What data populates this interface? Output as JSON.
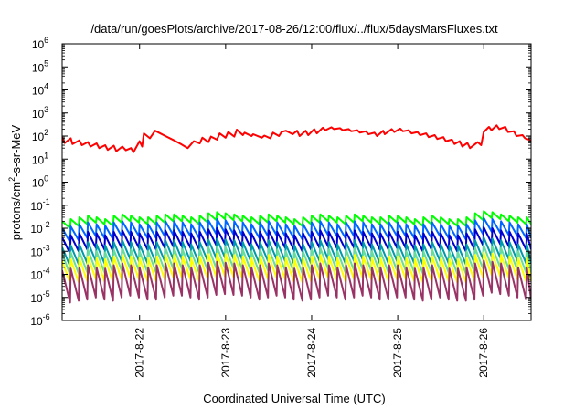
{
  "chart_data": {
    "type": "line",
    "title": "/data/run/goesPlots/archive/2017-08-26/12:00/flux/../flux/5daysMarsFluxes.txt",
    "xlabel": "Coordinated Universal Time (UTC)",
    "ylabel": {
      "base": "protons/cm",
      "sup": "2",
      "rest": "-s-sr-MeV"
    },
    "yscale": "log",
    "ylim_exp": [
      -6,
      6
    ],
    "ytick_base": "10",
    "yticks_exp": [
      "-6",
      "-5",
      "-4",
      "-3",
      "-2",
      "-1",
      "0",
      "1",
      "2",
      "3",
      "4",
      "5",
      "6"
    ],
    "xlim_days": [
      21.1,
      26.55
    ],
    "xticks": [
      {
        "day": 22,
        "label": "2017-8-22"
      },
      {
        "day": 23,
        "label": "2017-8-23"
      },
      {
        "day": 24,
        "label": "2017-8-24"
      },
      {
        "day": 25,
        "label": "2017-8-25"
      },
      {
        "day": 26,
        "label": "2017-8-26"
      }
    ],
    "grid": false,
    "series": [
      {
        "color": "#ff0000",
        "style": "decay-with-jumps",
        "x_days": [
          21.1,
          21.13,
          21.2,
          21.22,
          21.3,
          21.33,
          21.4,
          21.43,
          21.5,
          21.53,
          21.6,
          21.63,
          21.7,
          21.73,
          21.8,
          21.84,
          21.9,
          21.93,
          22.0,
          22.03,
          22.05,
          22.12,
          22.18,
          22.3,
          22.4,
          22.48,
          22.56,
          22.63,
          22.7,
          22.73,
          22.8,
          22.83,
          22.9,
          22.93,
          23.0,
          23.03,
          23.1,
          23.13,
          23.2,
          23.22,
          23.3,
          23.32,
          23.42,
          23.45,
          23.52,
          23.55,
          23.62,
          23.65,
          23.7,
          23.78,
          23.83,
          23.86,
          23.93,
          23.96,
          24.03,
          24.06,
          24.13,
          24.16,
          24.23,
          24.26,
          24.33,
          24.36,
          24.43,
          24.46,
          24.53,
          24.56,
          24.63,
          24.66,
          24.73,
          24.76,
          24.83,
          24.85,
          24.93,
          24.96,
          25.03,
          25.06,
          25.13,
          25.16,
          25.23,
          25.26,
          25.33,
          25.36,
          25.43,
          25.46,
          25.53,
          25.56,
          25.63,
          25.66,
          25.72,
          25.75,
          25.81,
          25.84,
          25.9,
          25.93,
          25.97,
          26.0,
          26.06,
          26.09,
          26.15,
          26.18,
          26.25,
          26.28,
          26.35,
          26.38,
          26.45,
          26.48,
          26.55
        ],
        "y": [
          90,
          50,
          80,
          45,
          65,
          40,
          55,
          35,
          48,
          30,
          40,
          25,
          38,
          22,
          35,
          24,
          30,
          20,
          60,
          35,
          130,
          80,
          170,
          100,
          65,
          45,
          30,
          60,
          48,
          85,
          55,
          95,
          70,
          130,
          85,
          150,
          95,
          190,
          110,
          140,
          100,
          120,
          85,
          105,
          80,
          140,
          100,
          150,
          170,
          120,
          170,
          100,
          170,
          110,
          200,
          130,
          230,
          180,
          240,
          200,
          220,
          180,
          200,
          160,
          180,
          140,
          160,
          120,
          140,
          100,
          170,
          120,
          200,
          150,
          210,
          160,
          180,
          130,
          150,
          110,
          130,
          90,
          110,
          75,
          90,
          60,
          70,
          45,
          60,
          35,
          50,
          30,
          45,
          55,
          40,
          150,
          250,
          180,
          290,
          200,
          250,
          150,
          160,
          100,
          110,
          80,
          65
        ]
      },
      {
        "color": "#00ff00",
        "style": "sawtooth",
        "x_start": 21.1,
        "x_end": 26.55,
        "period": 0.1,
        "peak": [
          0.02,
          0.025,
          0.03,
          0.035,
          0.03,
          0.025,
          0.035,
          0.04,
          0.035,
          0.03,
          0.03,
          0.035,
          0.04,
          0.04,
          0.035,
          0.03,
          0.035,
          0.045,
          0.05,
          0.045,
          0.04,
          0.035,
          0.03,
          0.035,
          0.04,
          0.035,
          0.03,
          0.025,
          0.03,
          0.035,
          0.04,
          0.035,
          0.03,
          0.035,
          0.04,
          0.035,
          0.03,
          0.03,
          0.035,
          0.035,
          0.03,
          0.025,
          0.03,
          0.035,
          0.03,
          0.025,
          0.025,
          0.03,
          0.045,
          0.055,
          0.05,
          0.04,
          0.035,
          0.03,
          0.03
        ],
        "trough_ratio": 0.5
      },
      {
        "color": "#0066ff",
        "style": "sawtooth",
        "x_start": 21.1,
        "x_end": 26.55,
        "period": 0.1,
        "peak": [
          0.01,
          0.012,
          0.015,
          0.018,
          0.015,
          0.013,
          0.018,
          0.02,
          0.018,
          0.015,
          0.015,
          0.018,
          0.02,
          0.02,
          0.018,
          0.015,
          0.018,
          0.022,
          0.025,
          0.022,
          0.02,
          0.018,
          0.015,
          0.018,
          0.02,
          0.018,
          0.015,
          0.013,
          0.015,
          0.018,
          0.02,
          0.018,
          0.015,
          0.018,
          0.02,
          0.018,
          0.015,
          0.015,
          0.018,
          0.018,
          0.015,
          0.013,
          0.015,
          0.018,
          0.015,
          0.013,
          0.013,
          0.015,
          0.022,
          0.028,
          0.025,
          0.02,
          0.018,
          0.015,
          0.015
        ],
        "trough_ratio": 0.25
      },
      {
        "color": "#0000cc",
        "style": "sawtooth",
        "x_start": 21.1,
        "x_end": 26.55,
        "period": 0.1,
        "peak": [
          0.004,
          0.005,
          0.006,
          0.007,
          0.006,
          0.005,
          0.007,
          0.008,
          0.007,
          0.006,
          0.006,
          0.007,
          0.008,
          0.008,
          0.007,
          0.006,
          0.007,
          0.009,
          0.01,
          0.009,
          0.008,
          0.007,
          0.006,
          0.007,
          0.008,
          0.007,
          0.006,
          0.005,
          0.006,
          0.007,
          0.008,
          0.007,
          0.006,
          0.007,
          0.008,
          0.007,
          0.006,
          0.006,
          0.007,
          0.007,
          0.006,
          0.005,
          0.006,
          0.007,
          0.006,
          0.005,
          0.005,
          0.006,
          0.009,
          0.011,
          0.01,
          0.008,
          0.007,
          0.006,
          0.006
        ],
        "trough_ratio": 0.2
      },
      {
        "color": "#0099aa",
        "style": "sawtooth",
        "x_start": 21.1,
        "x_end": 26.55,
        "period": 0.1,
        "peak": [
          0.0015,
          0.0018,
          0.002,
          0.0025,
          0.002,
          0.0018,
          0.0025,
          0.003,
          0.0025,
          0.002,
          0.002,
          0.0025,
          0.003,
          0.003,
          0.0025,
          0.002,
          0.0025,
          0.0032,
          0.0035,
          0.0032,
          0.003,
          0.0025,
          0.002,
          0.0025,
          0.003,
          0.0025,
          0.002,
          0.0018,
          0.002,
          0.0025,
          0.003,
          0.0025,
          0.002,
          0.0025,
          0.003,
          0.0025,
          0.002,
          0.002,
          0.0025,
          0.0025,
          0.002,
          0.0018,
          0.002,
          0.0025,
          0.002,
          0.0018,
          0.0018,
          0.002,
          0.003,
          0.004,
          0.0035,
          0.003,
          0.0025,
          0.002,
          0.002
        ],
        "trough_ratio": 0.15
      },
      {
        "color": "#66dd99",
        "style": "sawtooth",
        "x_start": 21.1,
        "x_end": 26.55,
        "period": 0.1,
        "peak": [
          0.0008,
          0.0009,
          0.001,
          0.0012,
          0.001,
          0.0009,
          0.0012,
          0.0014,
          0.0012,
          0.001,
          0.001,
          0.0012,
          0.0014,
          0.0014,
          0.0012,
          0.001,
          0.0012,
          0.0015,
          0.0016,
          0.0015,
          0.0014,
          0.0012,
          0.001,
          0.0012,
          0.0014,
          0.0012,
          0.001,
          0.0009,
          0.001,
          0.0012,
          0.0014,
          0.0012,
          0.001,
          0.0012,
          0.0014,
          0.0012,
          0.001,
          0.001,
          0.0012,
          0.0012,
          0.001,
          0.0009,
          0.001,
          0.0012,
          0.001,
          0.0009,
          0.0009,
          0.001,
          0.0014,
          0.0018,
          0.0016,
          0.0014,
          0.0012,
          0.001,
          0.001
        ],
        "trough_ratio": 0.12
      },
      {
        "color": "#ffff00",
        "style": "sawtooth",
        "x_start": 21.1,
        "x_end": 26.55,
        "period": 0.1,
        "peak": [
          0.0004,
          0.00045,
          0.0005,
          0.0006,
          0.0005,
          0.00045,
          0.0006,
          0.0007,
          0.0006,
          0.0005,
          0.0005,
          0.0006,
          0.0007,
          0.0007,
          0.0006,
          0.0005,
          0.0006,
          0.00075,
          0.0008,
          0.00075,
          0.0007,
          0.0006,
          0.0005,
          0.0006,
          0.0007,
          0.0006,
          0.0005,
          0.00045,
          0.0005,
          0.0006,
          0.0007,
          0.0006,
          0.0005,
          0.0006,
          0.0007,
          0.0006,
          0.0005,
          0.0005,
          0.0006,
          0.0006,
          0.0005,
          0.00045,
          0.0005,
          0.0006,
          0.0005,
          0.00045,
          0.00045,
          0.0005,
          0.0007,
          0.0009,
          0.0008,
          0.0007,
          0.0006,
          0.0005,
          0.0005
        ],
        "trough_ratio": 0.1
      },
      {
        "color": "#993366",
        "style": "sawtooth",
        "x_start": 21.1,
        "x_end": 26.55,
        "period": 0.1,
        "peak": [
          0.00015,
          0.00018,
          0.0002,
          0.00025,
          0.0002,
          0.00018,
          0.00025,
          0.0003,
          0.00025,
          0.0002,
          0.0002,
          0.00025,
          0.0003,
          0.0003,
          0.00025,
          0.0002,
          0.00025,
          0.00032,
          0.00035,
          0.00032,
          0.0003,
          0.00025,
          0.0002,
          0.00025,
          0.0003,
          0.00025,
          0.0002,
          0.00018,
          0.0002,
          0.00025,
          0.0003,
          0.00025,
          0.0002,
          0.00025,
          0.0003,
          0.00025,
          0.0002,
          0.0002,
          0.00025,
          0.00025,
          0.0002,
          0.00018,
          0.0002,
          0.00025,
          0.0002,
          0.00018,
          0.00018,
          0.0002,
          0.0003,
          0.0004,
          0.00035,
          0.0003,
          0.00025,
          0.0002,
          0.0002
        ],
        "trough_ratio": 0.04
      }
    ]
  }
}
